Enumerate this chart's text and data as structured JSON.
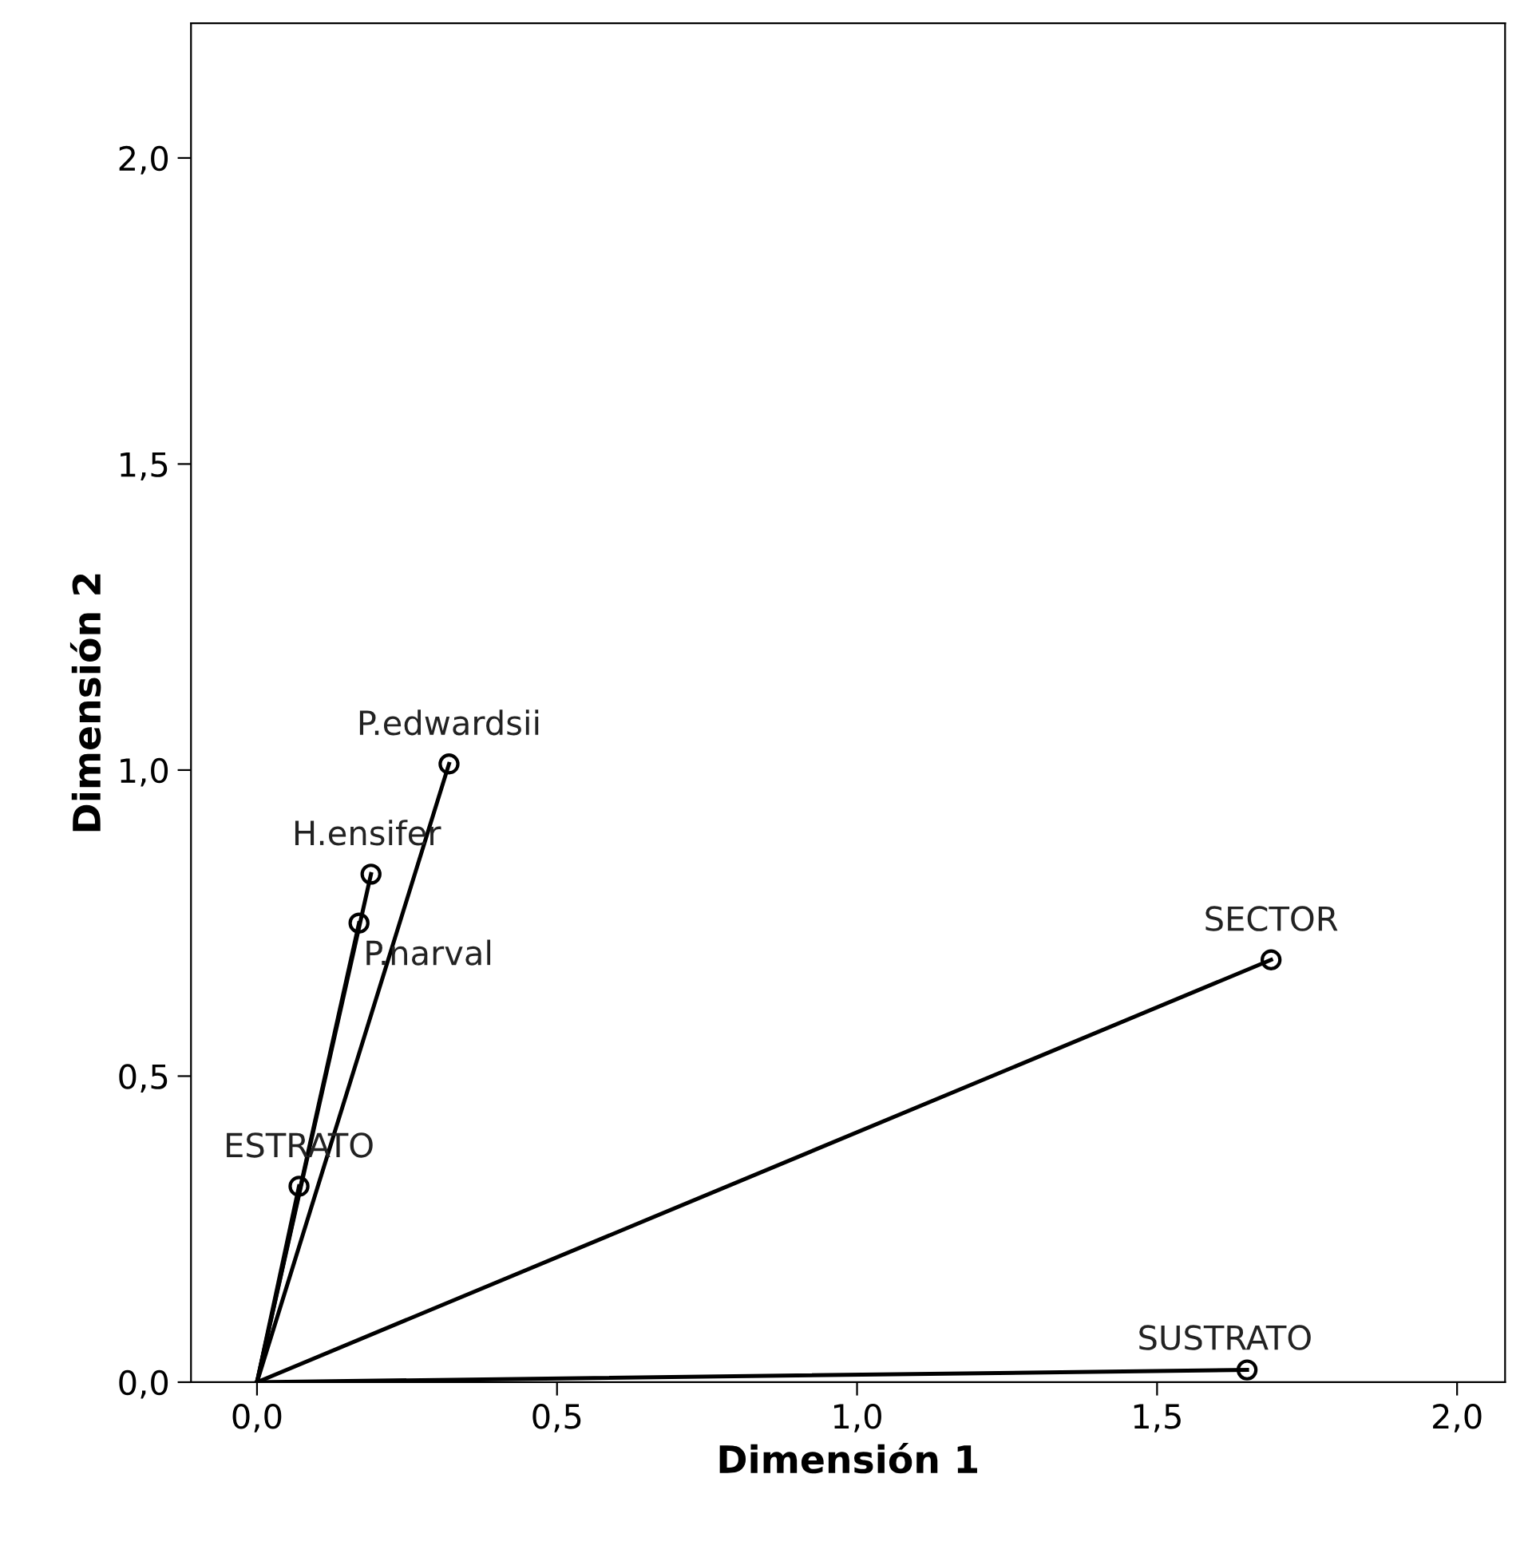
{
  "chart_data": {
    "type": "line",
    "xlabel": "Dimensión 1",
    "ylabel": "Dimensión 2",
    "series": [
      {
        "name": "P.edwardsii",
        "color": "#000000",
        "x": [
          0,
          0.32
        ],
        "values": [
          0,
          1.01
        ]
      },
      {
        "name": "H.ensifer",
        "color": "#000000",
        "x": [
          0,
          0.19
        ],
        "values": [
          0,
          0.83
        ]
      },
      {
        "name": "P.narval",
        "color": "#000000",
        "x": [
          0,
          0.17
        ],
        "values": [
          0,
          0.75
        ]
      },
      {
        "name": "ESTRATO",
        "color": "#000000",
        "x": [
          0,
          0.07
        ],
        "values": [
          0,
          0.32
        ]
      },
      {
        "name": "SECTOR",
        "color": "#000000",
        "x": [
          0,
          1.69
        ],
        "values": [
          0,
          0.69
        ]
      },
      {
        "name": "SUSTRATO",
        "color": "#000000",
        "x": [
          0,
          1.65
        ],
        "values": [
          0,
          0.02
        ]
      }
    ],
    "xlim": [
      -0.11,
      2.08
    ],
    "ylim": [
      0,
      2.22
    ],
    "xticks": [
      {
        "value": 0,
        "label": "0,0"
      },
      {
        "value": 0.5,
        "label": "0,5"
      },
      {
        "value": 1,
        "label": "1,0"
      },
      {
        "value": 1.5,
        "label": "1,5"
      },
      {
        "value": 2,
        "label": "2,0"
      }
    ],
    "yticks": [
      {
        "value": 0,
        "label": "0,0"
      },
      {
        "value": 0.5,
        "label": "0,5"
      },
      {
        "value": 1,
        "label": "1,0"
      },
      {
        "value": 1.5,
        "label": "1,5"
      },
      {
        "value": 2,
        "label": "2,0"
      }
    ],
    "grid": false,
    "legend": false,
    "marker": "circle",
    "line_style": "solid"
  }
}
